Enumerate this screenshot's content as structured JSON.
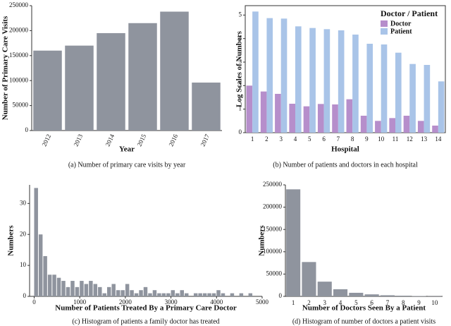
{
  "chart_data": [
    {
      "type": "bar",
      "categories": [
        "2012",
        "2013",
        "2014",
        "2015",
        "2016",
        "2017"
      ],
      "values": [
        160000,
        170000,
        195000,
        215000,
        238000,
        96000
      ],
      "color": "#8f949e",
      "ylim": [
        0,
        250000
      ],
      "yticks": [
        0,
        50000,
        100000,
        150000,
        200000,
        250000
      ],
      "x_label": "Year",
      "y_label": "Number of Primary Care Visits",
      "caption": "(a) Number of primary care visits by year"
    },
    {
      "type": "bar",
      "categories": [
        "1",
        "2",
        "3",
        "4",
        "5",
        "6",
        "7",
        "8",
        "9",
        "10",
        "11",
        "12",
        "13",
        "14"
      ],
      "series": [
        {
          "name": "Doctor",
          "color": "#b68ecb",
          "values": [
            2.0,
            1.75,
            1.65,
            1.23,
            1.12,
            1.22,
            1.2,
            1.42,
            0.72,
            0.5,
            0.62,
            0.72,
            0.5,
            0.3
          ]
        },
        {
          "name": "Patient",
          "color": "#a9c4e8",
          "values": [
            5.15,
            4.87,
            4.85,
            4.52,
            4.45,
            4.4,
            4.35,
            4.17,
            3.78,
            3.75,
            3.4,
            2.92,
            2.88,
            2.18
          ]
        }
      ],
      "ylim": [
        0,
        5.4
      ],
      "yticks": [
        0,
        1,
        2,
        3,
        4,
        5
      ],
      "legend_title": "Doctor / Patient",
      "legend": "upper right",
      "x_label": "Hospital",
      "y_label": "Log Scales of Numbers",
      "caption": "(b) Number of patients and doctors in each hospital"
    },
    {
      "type": "histogram",
      "color": "#8f949e",
      "bins": [
        0,
        100,
        200,
        300,
        400,
        500,
        600,
        700,
        800,
        900,
        1000,
        1100,
        1200,
        1300,
        1400,
        1500,
        1600,
        1700,
        1800,
        1900,
        2000,
        2100,
        2200,
        2300,
        2400,
        2500,
        2600,
        2700,
        2800,
        2900,
        3000,
        3100,
        3200,
        3300,
        3400,
        3500,
        3600,
        3700,
        3800,
        3900,
        4000,
        4100,
        4200,
        4300,
        4400,
        4500,
        4600,
        4700,
        4800
      ],
      "values": [
        35,
        20,
        13,
        7,
        7,
        6,
        5,
        3,
        5,
        3,
        5,
        4,
        5,
        4,
        3,
        1,
        3,
        4,
        2,
        2,
        4,
        2,
        1,
        2,
        3,
        1,
        2,
        1,
        1,
        1,
        2,
        1,
        2,
        1,
        0,
        1,
        1,
        1,
        1,
        1,
        2,
        1,
        0,
        1,
        0,
        1,
        0,
        1
      ],
      "xlim": [
        -100,
        5000
      ],
      "xticks": [
        0,
        1000,
        2000,
        3000,
        4000,
        5000
      ],
      "ylim": [
        0,
        36
      ],
      "yticks": [
        0,
        10,
        20,
        30
      ],
      "x_label": "Number of Patients Treated By a Primary Care Doctor",
      "y_label": "Numbers",
      "caption": "(c) Histogram of patients a family doctor has treated"
    },
    {
      "type": "bar",
      "categories": [
        "1",
        "2",
        "3",
        "4",
        "5",
        "6",
        "7",
        "8",
        "9",
        "10"
      ],
      "values": [
        240000,
        77000,
        33000,
        16000,
        8000,
        4500,
        2500,
        1500,
        800,
        400
      ],
      "color": "#8f949e",
      "ylim": [
        0,
        250000
      ],
      "yticks": [
        0,
        50000,
        100000,
        150000,
        200000,
        250000
      ],
      "x_label": "Number of Doctors Seen By a Patient",
      "y_label": "Numbers",
      "caption": "(d) Histogram of number of doctors a patient visits"
    }
  ]
}
